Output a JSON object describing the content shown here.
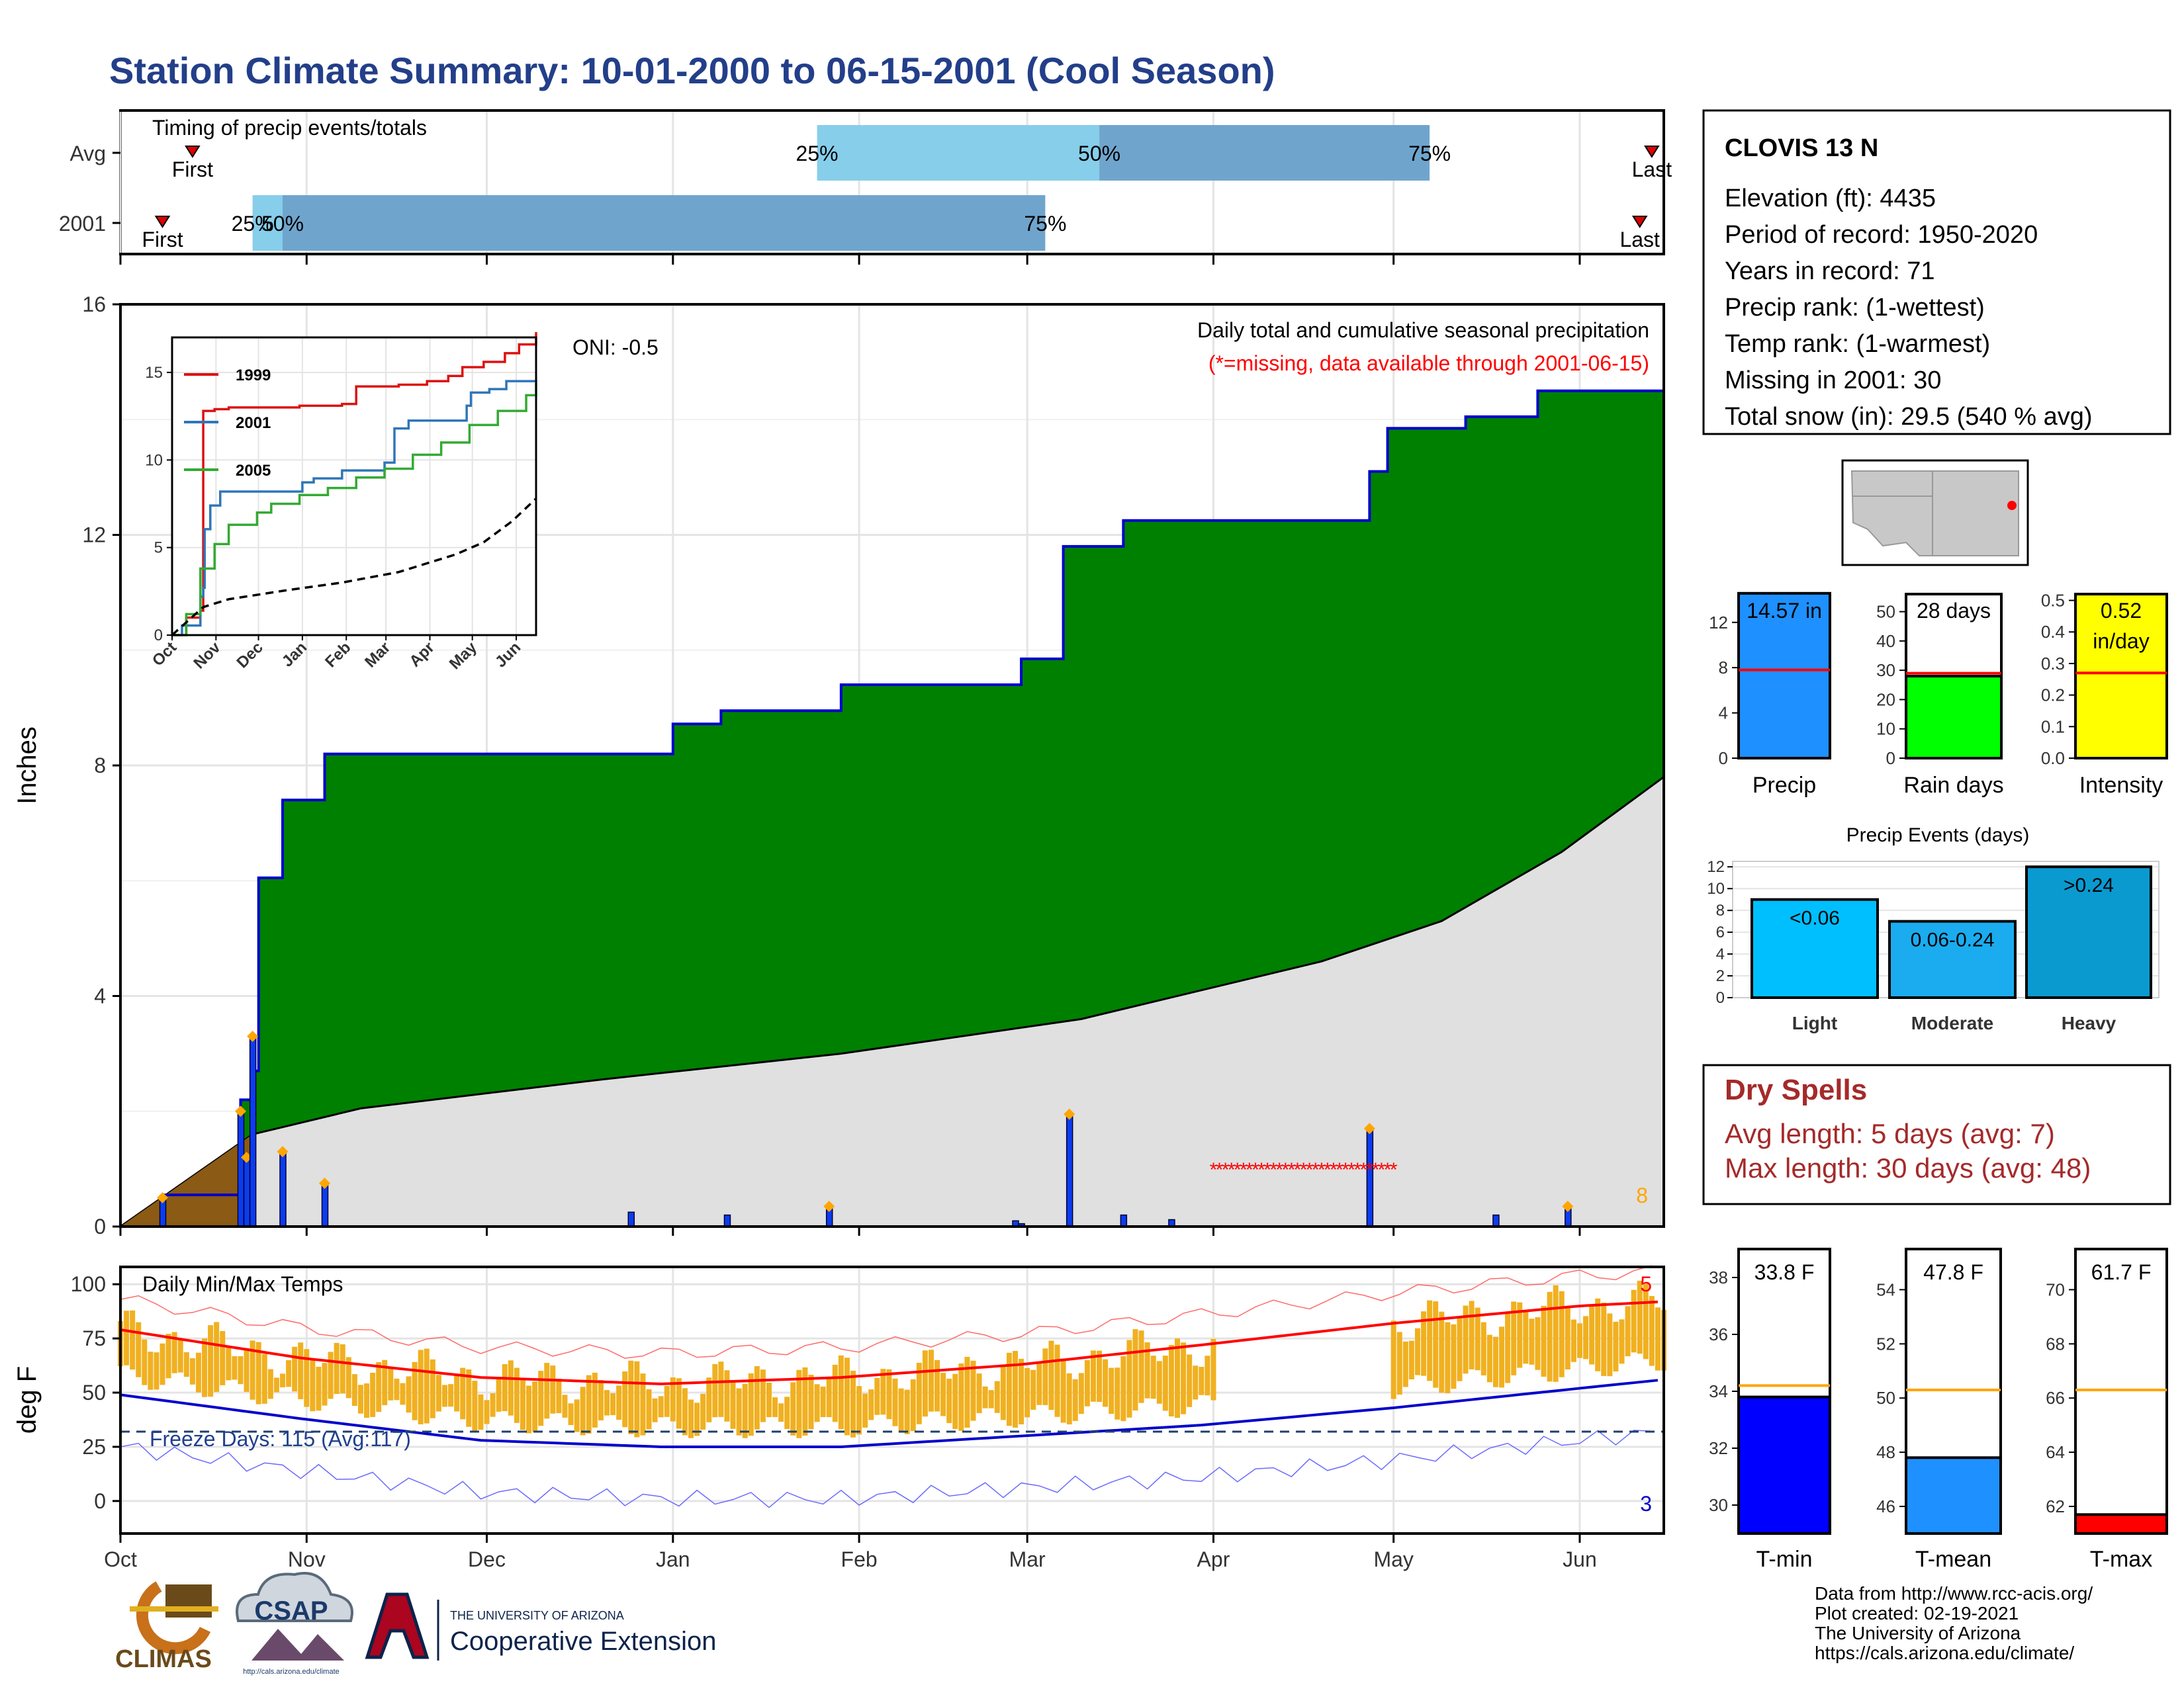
{
  "title": "Station Climate Summary: 10-01-2000 to 06-15-2001 (Cool Season)",
  "colors": {
    "title": "#233f8a",
    "precip_fill": "#008000",
    "precip_outline": "#0000cc",
    "normal_fill": "#e0e0e0",
    "prior_fill": "#8b5a14",
    "daily_bar": "#0b3cf0",
    "event_marker": "#ffa500",
    "missing": "#ff0000",
    "tmax_line": "#ff0000",
    "tmin_line": "#0000cc",
    "temp_bar": "#f0b020",
    "quartile_light": "#87ceeb",
    "quartile_dark": "#6fa5cd",
    "dry_spell_text": "#a52a2a"
  },
  "timing_panel": {
    "heading": "Timing of precip events/totals",
    "rows": [
      {
        "label": "Avg",
        "first": "First",
        "last": "Last",
        "q25": "25%",
        "q50": "50%",
        "q75": "75%",
        "first_day": 12,
        "last_day": 255,
        "q25_day": 116,
        "q50_day": 163,
        "q75_day": 218
      },
      {
        "label": "2001",
        "first": "First",
        "last": "Last",
        "q25": "25%",
        "q50": "50%",
        "q75": "75%",
        "first_day": 7,
        "last_day": 253,
        "q25_day": 22,
        "q50_day": 27,
        "q75_day": 154
      }
    ]
  },
  "x_axis": {
    "ticks": [
      {
        "label": "Oct",
        "day": 0
      },
      {
        "label": "Nov",
        "day": 31
      },
      {
        "label": "Dec",
        "day": 61
      },
      {
        "label": "Jan",
        "day": 92
      },
      {
        "label": "Feb",
        "day": 123
      },
      {
        "label": "Mar",
        "day": 151
      },
      {
        "label": "Apr",
        "day": 182
      },
      {
        "label": "May",
        "day": 212
      },
      {
        "label": "Jun",
        "day": 243
      }
    ],
    "max_day": 257
  },
  "main_panel": {
    "ylabel": "Inches",
    "yticks": [
      "0",
      "4",
      "8",
      "12",
      "16"
    ],
    "ylim": [
      0,
      16
    ],
    "oni": "ONI: -0.5",
    "heading": "Daily total and cumulative seasonal precipitation",
    "missing_note": "(*=missing, data available through 2001-06-15)",
    "missing_count": "8"
  },
  "chart_data": [
    {
      "type": "area",
      "name": "cumulative seasonal precipitation 2001",
      "x": [
        0,
        7,
        20,
        22,
        23,
        27,
        34,
        92,
        100,
        120,
        150,
        157,
        167,
        208,
        211,
        224,
        236,
        257
      ],
      "y": [
        0.0,
        0.55,
        2.2,
        2.7,
        6.05,
        7.4,
        8.2,
        8.72,
        8.95,
        9.4,
        9.85,
        11.8,
        12.25,
        13.1,
        13.85,
        14.05,
        14.5,
        14.57
      ],
      "normal_x": [
        0,
        22,
        40,
        80,
        120,
        160,
        200,
        220,
        240,
        257
      ],
      "normal_y": [
        0.0,
        1.6,
        2.05,
        2.55,
        3.0,
        3.6,
        4.6,
        5.3,
        6.5,
        7.8
      ],
      "ylim": [
        0,
        16
      ]
    },
    {
      "type": "bar",
      "name": "daily precipitation",
      "x": [
        7,
        20,
        21,
        22,
        27,
        34,
        85,
        101,
        118,
        149,
        150,
        158,
        167,
        175,
        208,
        229,
        241
      ],
      "y": [
        0.5,
        2.0,
        1.2,
        3.3,
        1.3,
        0.75,
        0.25,
        0.2,
        0.35,
        0.1,
        0.05,
        1.95,
        0.2,
        0.12,
        1.7,
        0.2,
        0.35
      ]
    },
    {
      "type": "line",
      "name": "inset cumulative precipitation",
      "x_ticks": [
        "Oct",
        "Nov",
        "Dec",
        "Jan",
        "Feb",
        "Mar",
        "Apr",
        "May",
        "Jun"
      ],
      "yticks": [
        "0",
        "5",
        "10",
        "15"
      ],
      "ylim": [
        0,
        17
      ],
      "series": [
        {
          "name": "1999",
          "color": "#dd1111",
          "x": [
            0,
            10,
            20,
            22,
            30,
            40,
            60,
            90,
            120,
            130,
            160,
            180,
            195,
            205,
            220,
            235,
            245,
            257
          ],
          "y": [
            0.0,
            1.0,
            1.4,
            12.8,
            12.9,
            13.0,
            13.0,
            13.1,
            13.2,
            14.2,
            14.3,
            14.5,
            14.8,
            15.3,
            15.6,
            16.1,
            16.6,
            17.3
          ]
        },
        {
          "name": "2001",
          "color": "#2f76b8",
          "x": [
            0,
            7,
            20,
            22,
            23,
            27,
            34,
            92,
            100,
            120,
            150,
            157,
            167,
            208,
            211,
            224,
            236,
            257
          ],
          "y": [
            0.0,
            0.55,
            2.2,
            2.7,
            6.05,
            7.4,
            8.2,
            8.72,
            8.95,
            9.4,
            9.85,
            11.8,
            12.25,
            13.1,
            13.85,
            14.05,
            14.5,
            14.57
          ]
        },
        {
          "name": "2005",
          "color": "#33aa33",
          "x": [
            0,
            10,
            20,
            30,
            40,
            60,
            70,
            90,
            110,
            130,
            150,
            170,
            190,
            210,
            230,
            250,
            257
          ],
          "y": [
            0.0,
            1.2,
            3.8,
            5.2,
            6.3,
            7.0,
            7.5,
            8.0,
            8.4,
            9.0,
            9.5,
            10.3,
            11.0,
            12.0,
            12.8,
            13.7,
            14.4
          ]
        },
        {
          "name": "avg",
          "color": "#000000",
          "x": [
            0,
            22,
            40,
            80,
            120,
            160,
            200,
            220,
            240,
            257
          ],
          "y": [
            0.0,
            1.6,
            2.05,
            2.55,
            3.0,
            3.6,
            4.6,
            5.3,
            6.5,
            7.8
          ]
        }
      ]
    },
    {
      "type": "line",
      "name": "daily min/max temps",
      "ylabel": "deg F",
      "yticks": [
        "0",
        "25",
        "50",
        "75",
        "100"
      ],
      "ylim": [
        -15,
        108
      ],
      "tmax_avg_x": [
        0,
        30,
        60,
        90,
        120,
        150,
        180,
        212,
        243,
        257
      ],
      "tmax_avg_y": [
        79,
        66,
        57,
        54,
        57,
        63,
        72,
        82,
        90,
        92
      ],
      "tmin_avg_x": [
        0,
        30,
        60,
        90,
        120,
        150,
        180,
        212,
        243,
        257
      ],
      "tmin_avg_y": [
        49,
        38,
        28,
        25,
        25,
        30,
        35,
        43,
        52,
        56
      ],
      "freeze_line": 32,
      "missing_start_day": 182,
      "missing_end_day": 212
    }
  ],
  "temp_panel": {
    "heading": "Daily Min/Max Temps",
    "freeze_text": "Freeze Days: 115 (Avg:117)",
    "count_high": "5",
    "count_low": "3"
  },
  "station": {
    "name": "CLOVIS 13 N",
    "lines": [
      "Elevation (ft): 4435",
      "Period of record: 1950-2020",
      "Years in record: 71",
      "Precip rank:  (1-wettest)",
      "Temp rank:  (1-warmest)",
      "Missing in 2001: 30",
      "Total snow (in): 29.5 (540 % avg)"
    ]
  },
  "summary_bars": [
    {
      "label": "Precip",
      "value_text": "14.57 in",
      "value": 14.57,
      "avg": 7.8,
      "ymax": 14.5,
      "yticks": [
        "0",
        "4",
        "8",
        "12"
      ],
      "ytick_vals": [
        0,
        4,
        8,
        12
      ],
      "color": "#1e90ff"
    },
    {
      "label": "Rain days",
      "value_text": "28 days",
      "value": 28,
      "avg": 29,
      "ymax": 56,
      "yticks": [
        "0",
        "10",
        "20",
        "30",
        "40",
        "50"
      ],
      "ytick_vals": [
        0,
        10,
        20,
        30,
        40,
        50
      ],
      "color": "#00ff00"
    },
    {
      "label": "Intensity",
      "value_text": "0.52",
      "value_text2": "in/day",
      "value": 0.52,
      "avg": 0.27,
      "ymax": 0.52,
      "yticks": [
        "0.0",
        "0.1",
        "0.2",
        "0.3",
        "0.4",
        "0.5"
      ],
      "ytick_vals": [
        0,
        0.1,
        0.2,
        0.3,
        0.4,
        0.5
      ],
      "color": "#ffff00"
    }
  ],
  "precip_events": {
    "title": "Precip Events (days)",
    "yticks": [
      "0",
      "2",
      "4",
      "6",
      "8",
      "10",
      "12"
    ],
    "ymax": 12.5,
    "bars": [
      {
        "label": "Light",
        "value_label": "<0.06",
        "value": 9,
        "color": "#00bfff"
      },
      {
        "label": "Moderate",
        "value_label": "0.06-0.24",
        "value": 7,
        "color": "#1aacef"
      },
      {
        "label": "Heavy",
        "value_label": ">0.24",
        "value": 12,
        "color": "#0a9ad0"
      }
    ]
  },
  "dry_spells": {
    "title": "Dry Spells",
    "avg_line": "Avg length: 5 days (avg: 7)",
    "max_line": "Max length: 30 days (avg: 48)"
  },
  "temp_bars": [
    {
      "label": "T-min",
      "value_text": "33.8 F",
      "value": 33.8,
      "avg": 34.2,
      "ymin": 29,
      "ymax": 39,
      "yticks": [
        "30",
        "32",
        "34",
        "36",
        "38"
      ],
      "ytick_vals": [
        30,
        32,
        34,
        36,
        38
      ],
      "color": "#0000ff"
    },
    {
      "label": "T-mean",
      "value_text": "47.8 F",
      "value": 47.8,
      "avg": 50.3,
      "ymin": 45,
      "ymax": 55.5,
      "yticks": [
        "46",
        "48",
        "50",
        "52",
        "54"
      ],
      "ytick_vals": [
        46,
        48,
        50,
        52,
        54
      ],
      "color": "#1e90ff"
    },
    {
      "label": "T-max",
      "value_text": "61.7 F",
      "value": 61.7,
      "avg": 66.3,
      "ymin": 61,
      "ymax": 71.5,
      "yticks": [
        "62",
        "64",
        "66",
        "68",
        "70"
      ],
      "ytick_vals": [
        62,
        64,
        66,
        68,
        70
      ],
      "color": "#ff0000"
    }
  ],
  "logos": {
    "climas": "CLIMAS",
    "csap": "CSAP",
    "csap_url": "http://cals.arizona.edu/climate",
    "ua_small": "THE UNIVERSITY OF ARIZONA",
    "ua_ext": "Cooperative Extension"
  },
  "footer": [
    "Data from http://www.rcc-acis.org/",
    "Plot created: 02-19-2021",
    "The University of Arizona",
    "https://cals.arizona.edu/climate/"
  ]
}
